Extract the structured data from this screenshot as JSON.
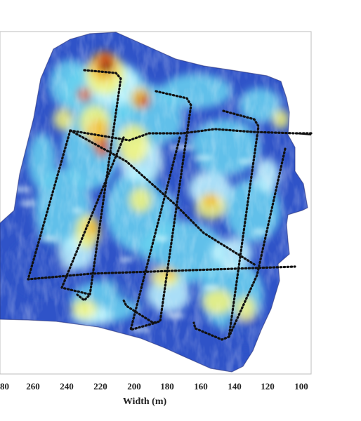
{
  "x_axis": {
    "label": "Width (m)",
    "ticks": [
      "80",
      "260",
      "240",
      "220",
      "200",
      "180",
      "160",
      "140",
      "120",
      "100"
    ]
  },
  "map": {
    "type": "heatmap",
    "colormap": [
      "#2b2f9a",
      "#2f53c8",
      "#3d8fe0",
      "#6ad3f0",
      "#bff7ff",
      "#f6f57a",
      "#f2b82a",
      "#d2561f",
      "#7d1c12"
    ],
    "survey_track_color": "#111111"
  }
}
